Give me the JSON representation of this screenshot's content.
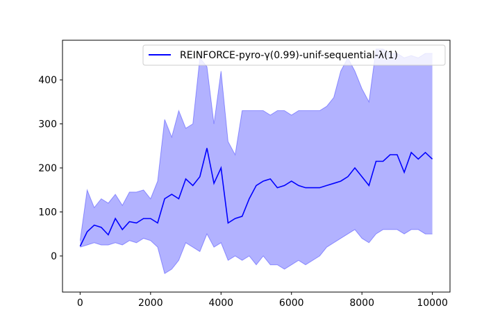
{
  "chart_data": {
    "type": "line",
    "title": "",
    "xlabel": "",
    "ylabel": "",
    "xlim": [
      -500,
      10500
    ],
    "ylim": [
      -82,
      490
    ],
    "xticks": [
      0,
      2000,
      4000,
      6000,
      8000,
      10000
    ],
    "yticks": [
      0,
      100,
      200,
      300,
      400
    ],
    "xtick_labels": [
      "0",
      "2000",
      "4000",
      "6000",
      "8000",
      "10000"
    ],
    "ytick_labels": [
      "0",
      "100",
      "200",
      "300",
      "400"
    ],
    "legend_placement": "top-right",
    "grid": false,
    "line_color": "#0000ff",
    "band_color": "#0000ff",
    "series": [
      {
        "name": "REINFORCE-pyro-γ(0.99)-unif-sequential-λ(1)",
        "x": [
          0,
          200,
          400,
          600,
          800,
          1000,
          1200,
          1400,
          1600,
          1800,
          2000,
          2200,
          2400,
          2600,
          2800,
          3000,
          3200,
          3400,
          3600,
          3800,
          4000,
          4200,
          4400,
          4600,
          4800,
          5000,
          5200,
          5400,
          5600,
          5800,
          6000,
          6200,
          6400,
          6600,
          6800,
          7000,
          7200,
          7400,
          7600,
          7800,
          8000,
          8200,
          8400,
          8600,
          8800,
          9000,
          9200,
          9400,
          9600,
          9800,
          10000
        ],
        "mean": [
          22,
          55,
          70,
          65,
          48,
          85,
          60,
          78,
          75,
          85,
          85,
          75,
          130,
          140,
          130,
          175,
          160,
          180,
          245,
          165,
          200,
          75,
          85,
          90,
          130,
          160,
          170,
          175,
          155,
          160,
          170,
          160,
          155,
          155,
          155,
          160,
          165,
          170,
          180,
          200,
          180,
          160,
          215,
          215,
          230,
          230,
          190,
          235,
          220,
          235,
          220
        ],
        "upper": [
          35,
          150,
          110,
          130,
          120,
          140,
          115,
          145,
          145,
          150,
          130,
          170,
          310,
          270,
          330,
          290,
          300,
          450,
          430,
          300,
          420,
          260,
          230,
          330,
          330,
          330,
          330,
          320,
          330,
          330,
          320,
          330,
          330,
          330,
          330,
          340,
          360,
          420,
          450,
          420,
          380,
          350,
          470,
          470,
          460,
          460,
          450,
          455,
          450,
          460,
          460
        ],
        "lower": [
          20,
          25,
          30,
          25,
          25,
          30,
          25,
          35,
          30,
          40,
          35,
          20,
          -40,
          -30,
          -10,
          30,
          20,
          10,
          50,
          20,
          30,
          -10,
          0,
          -10,
          0,
          -20,
          0,
          -20,
          -20,
          -30,
          -20,
          -10,
          -20,
          -10,
          0,
          20,
          30,
          40,
          50,
          60,
          40,
          30,
          50,
          60,
          60,
          60,
          50,
          60,
          60,
          50,
          50
        ]
      }
    ]
  }
}
